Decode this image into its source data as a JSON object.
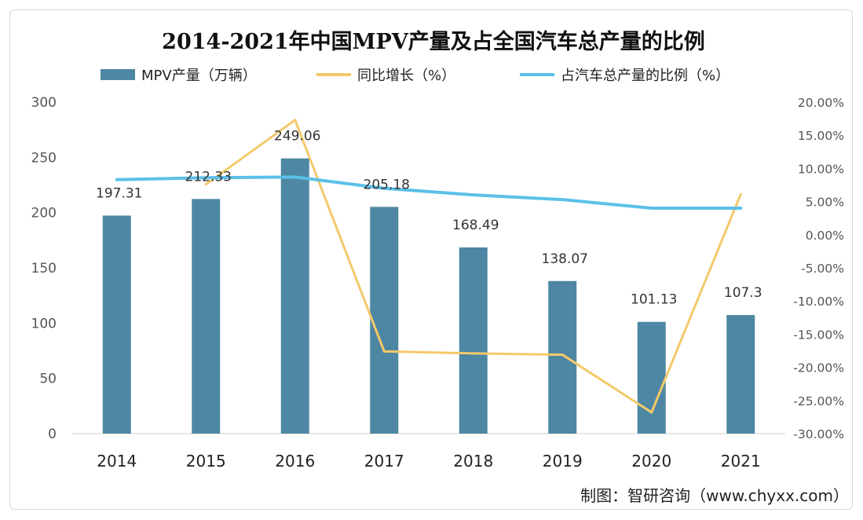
{
  "chart_data": {
    "type": "bar",
    "title": "2014-2021年中国MPV产量及占全国汽车总产量的比例",
    "categories": [
      "2014",
      "2015",
      "2016",
      "2017",
      "2018",
      "2019",
      "2020",
      "2021"
    ],
    "series": [
      {
        "name": "MPV产量（万辆）",
        "type": "bar",
        "axis": "left",
        "color": "#4e87a3",
        "values": [
          197.31,
          212.33,
          249.06,
          205.18,
          168.49,
          138.07,
          101.13,
          107.3
        ],
        "labels": [
          "197.31",
          "212.33",
          "249.06",
          "205.18",
          "168.49",
          "138.07",
          "101.13",
          "107.3"
        ]
      },
      {
        "name": "同比增长（%）",
        "type": "line",
        "axis": "right",
        "color": "#f4c96a",
        "values": [
          null,
          7.6,
          17.3,
          -17.6,
          -17.9,
          -18.1,
          -26.8,
          6.1
        ]
      },
      {
        "name": "占汽车总产量的比例（%）",
        "type": "line",
        "axis": "right",
        "color": "#5bc0e8",
        "values": [
          8.3,
          8.6,
          8.7,
          7.0,
          6.0,
          5.3,
          4.0,
          4.0
        ]
      }
    ],
    "y_left": {
      "min": 0,
      "max": 300,
      "ticks": [
        "0",
        "50",
        "100",
        "150",
        "200",
        "250",
        "300"
      ]
    },
    "y_right": {
      "min": -30,
      "max": 20,
      "ticks": [
        "-30.00%",
        "-25.00%",
        "-20.00%",
        "-15.00%",
        "-10.00%",
        "-5.00%",
        "0.00%",
        "5.00%",
        "10.00%",
        "15.00%",
        "20.00%"
      ]
    },
    "grid": false,
    "legend": "top"
  },
  "source": "制图：智研咨询（www.chyxx.com）"
}
